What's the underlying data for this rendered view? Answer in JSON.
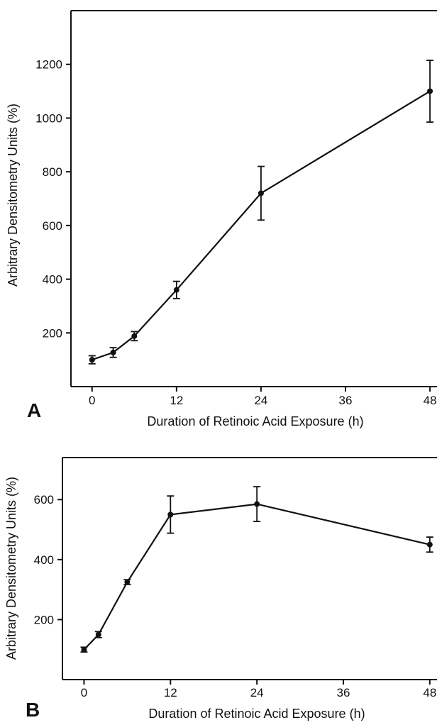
{
  "chart_data": [
    {
      "type": "line",
      "panel_label": "A",
      "xlabel": "Duration of Retinoic Acid Exposure (h)",
      "ylabel": "Arbitrary Densitometry Units (%)",
      "x_ticks": [
        "0",
        "12",
        "24",
        "36",
        "48"
      ],
      "y_ticks": [
        "200",
        "400",
        "600",
        "800",
        "1000",
        "1200"
      ],
      "xlim": [
        -3,
        49
      ],
      "ylim": [
        0,
        1400
      ],
      "x": [
        0,
        3,
        6,
        12,
        24,
        48
      ],
      "y": [
        100,
        127,
        188,
        360,
        720,
        1100
      ],
      "error": [
        15,
        18,
        17,
        32,
        100,
        115
      ],
      "grid": false
    },
    {
      "type": "line",
      "panel_label": "B",
      "xlabel": "Duration of Retinoic Acid Exposure (h)",
      "ylabel": "Arbitrary Densitometry Units (%)",
      "x_ticks": [
        "0",
        "12",
        "24",
        "36",
        "48"
      ],
      "y_ticks": [
        "200",
        "400",
        "600"
      ],
      "xlim": [
        -3,
        49
      ],
      "ylim": [
        0,
        740
      ],
      "x": [
        0,
        2,
        6,
        12,
        24,
        48
      ],
      "y": [
        100,
        150,
        325,
        550,
        585,
        450
      ],
      "error": [
        8,
        10,
        8,
        62,
        58,
        25
      ],
      "grid": false
    }
  ]
}
